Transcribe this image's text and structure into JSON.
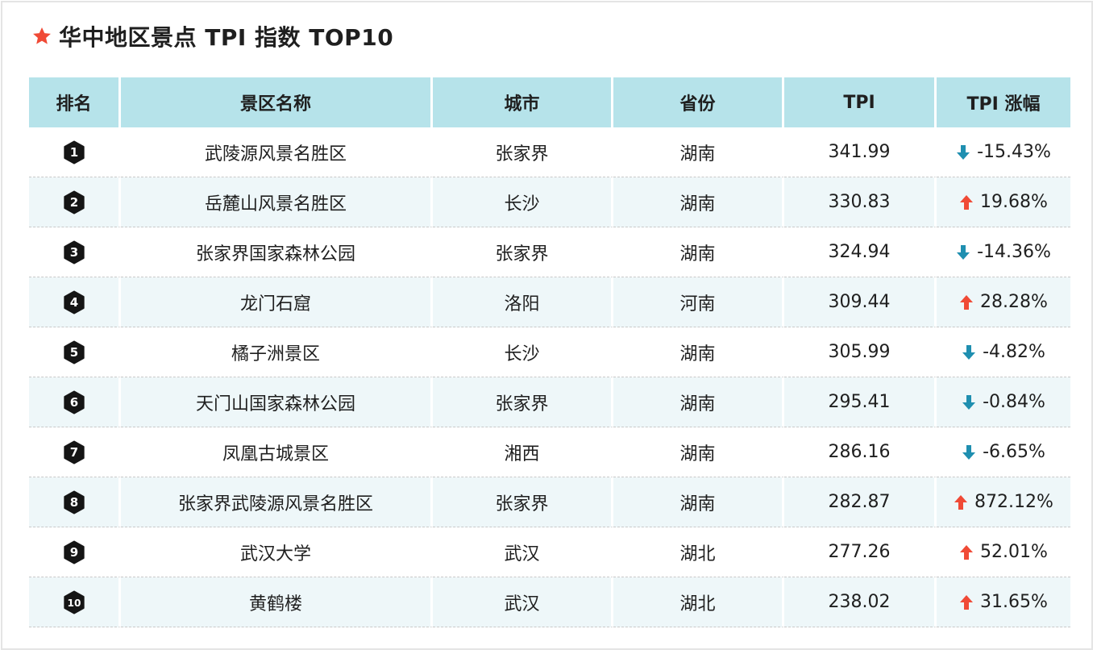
{
  "title": "华中地区景点 TPI 指数 TOP10",
  "colors": {
    "star": "#f04a36",
    "header_bg": "#b6e3ea",
    "alt_row": "#eef7f9",
    "up": "#f04a36",
    "down": "#1f8fb0"
  },
  "headers": [
    "排名",
    "景区名称",
    "城市",
    "省份",
    "TPI",
    "TPI 涨幅"
  ],
  "rows": [
    {
      "rank": "1",
      "name": "武陵源风景名胜区",
      "city": "张家界",
      "province": "湖南",
      "tpi": "341.99",
      "change": "-15.43%",
      "dir": "down"
    },
    {
      "rank": "2",
      "name": "岳麓山风景名胜区",
      "city": "长沙",
      "province": "湖南",
      "tpi": "330.83",
      "change": "19.68%",
      "dir": "up"
    },
    {
      "rank": "3",
      "name": "张家界国家森林公园",
      "city": "张家界",
      "province": "湖南",
      "tpi": "324.94",
      "change": "-14.36%",
      "dir": "down"
    },
    {
      "rank": "4",
      "name": "龙门石窟",
      "city": "洛阳",
      "province": "河南",
      "tpi": "309.44",
      "change": "28.28%",
      "dir": "up"
    },
    {
      "rank": "5",
      "name": "橘子洲景区",
      "city": "长沙",
      "province": "湖南",
      "tpi": "305.99",
      "change": "-4.82%",
      "dir": "down"
    },
    {
      "rank": "6",
      "name": "天门山国家森林公园",
      "city": "张家界",
      "province": "湖南",
      "tpi": "295.41",
      "change": "-0.84%",
      "dir": "down"
    },
    {
      "rank": "7",
      "name": "凤凰古城景区",
      "city": "湘西",
      "province": "湖南",
      "tpi": "286.16",
      "change": "-6.65%",
      "dir": "down"
    },
    {
      "rank": "8",
      "name": "张家界武陵源风景名胜区",
      "city": "张家界",
      "province": "湖南",
      "tpi": "282.87",
      "change": "872.12%",
      "dir": "up"
    },
    {
      "rank": "9",
      "name": "武汉大学",
      "city": "武汉",
      "province": "湖北",
      "tpi": "277.26",
      "change": "52.01%",
      "dir": "up"
    },
    {
      "rank": "10",
      "name": "黄鹤楼",
      "city": "武汉",
      "province": "湖北",
      "tpi": "238.02",
      "change": "31.65%",
      "dir": "up"
    }
  ]
}
